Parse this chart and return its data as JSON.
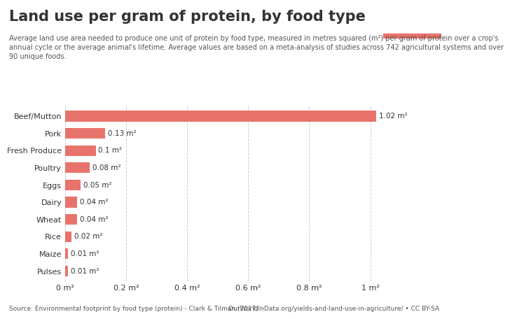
{
  "title": "Land use per gram of protein, by food type",
  "subtitle": "Average land use area needed to produce one unit of protein by food type, measured in metres squared (m²) per gram of protein over a crop's\nannual cycle or the average animal's lifetime. Average values are based on a meta-analysis of studies across 742 agricultural systems and over\n90 unique foods.",
  "categories": [
    "Beef/Mutton",
    "Pork",
    "Fresh Produce",
    "Poultry",
    "Eggs",
    "Dairy",
    "Wheat",
    "Rice",
    "Maize",
    "Pulses"
  ],
  "values": [
    1.02,
    0.13,
    0.1,
    0.08,
    0.05,
    0.04,
    0.04,
    0.02,
    0.01,
    0.01
  ],
  "labels": [
    "1.02 m²",
    "0.13 m²",
    "0.1 m²",
    "0.08 m²",
    "0.05 m²",
    "0.04 m²",
    "0.04 m²",
    "0.02 m²",
    "0.01 m²",
    "0.01 m²"
  ],
  "bar_color": "#E8736C",
  "bg_color": "#FFFFFF",
  "grid_color": "#CCCCCC",
  "text_color": "#333333",
  "subtitle_color": "#555555",
  "footer_left": "Source: Environmental footprint by food type (protein) - Clark & Tilman (2017)",
  "footer_right": "OurWorldInData.org/yields-and-land-use-in-agriculture/ • CC BY-SA",
  "xlim": [
    0,
    1.08
  ],
  "xticks": [
    0,
    0.2,
    0.4,
    0.6,
    0.8,
    1.0
  ],
  "xtick_labels": [
    "0 m²",
    "0.2 m²",
    "0.4 m²",
    "0.6 m²",
    "0.8 m²",
    "1 m²"
  ],
  "logo_bg": "#1d3557",
  "logo_stripe": "#E8736C",
  "title_fontsize": 15,
  "subtitle_fontsize": 7,
  "tick_fontsize": 8,
  "label_fontsize": 7.5,
  "footer_fontsize": 6.5
}
